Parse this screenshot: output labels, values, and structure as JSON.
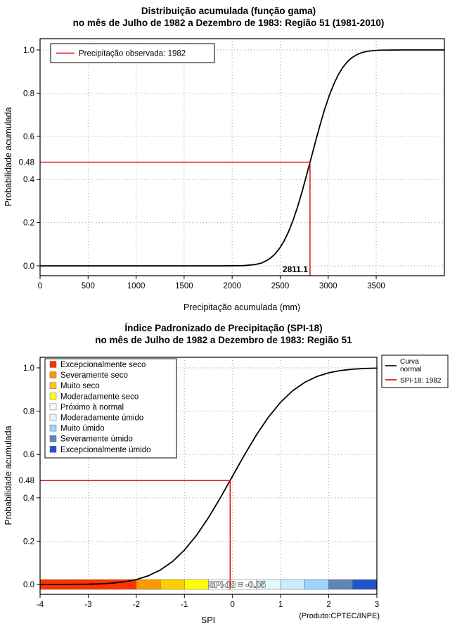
{
  "page": {
    "background": "#ffffff"
  },
  "chart_data": [
    {
      "type": "line",
      "title": "Distribuição acumulada (função gama)",
      "subtitle": "no mês de Julho de 1982 a Dezembro de 1983: Região 51 (1981-2010)",
      "xlabel": "Precipitação acumulada (mm)",
      "ylabel": "Probabilidade acumulada",
      "xlim": [
        0,
        4210
      ],
      "ylim": [
        0,
        1
      ],
      "grid": true,
      "xticks": {
        "values": [
          0,
          500,
          1000,
          1500,
          2000,
          2500,
          3000,
          3500
        ],
        "labels": [
          "0",
          "500",
          "1000",
          "1500",
          "2000",
          "2500",
          "3000",
          "3500"
        ]
      },
      "yticks": {
        "values": [
          0,
          0.2,
          0.4,
          0.6,
          0.8,
          1.0
        ],
        "labels": [
          "0.0",
          "0.2",
          "0.4",
          "0.6",
          "0.8",
          "1.0"
        ]
      },
      "legend": {
        "position": "top-left",
        "entries": [
          {
            "label": "Precipitação observada: 1982",
            "color": "#dd0000"
          }
        ]
      },
      "series": [
        {
          "name": "Distribuição gama acumulada",
          "color": "#000000",
          "points": [
            [
              0,
              0
            ],
            [
              600,
              0
            ],
            [
              1200,
              0
            ],
            [
              1600,
              0
            ],
            [
              1900,
              0
            ],
            [
              2000,
              0.0005
            ],
            [
              2120,
              0.001
            ],
            [
              2235,
              0.006
            ],
            [
              2300,
              0.012
            ],
            [
              2353,
              0.023
            ],
            [
              2400,
              0.036
            ],
            [
              2447,
              0.055
            ],
            [
              2494,
              0.081
            ],
            [
              2541,
              0.115
            ],
            [
              2588,
              0.159
            ],
            [
              2635,
              0.212
            ],
            [
              2682,
              0.274
            ],
            [
              2729,
              0.345
            ],
            [
              2776,
              0.421
            ],
            [
              2811,
              0.48
            ],
            [
              2823,
              0.5
            ],
            [
              2870,
              0.579
            ],
            [
              2917,
              0.655
            ],
            [
              2964,
              0.726
            ],
            [
              3011,
              0.788
            ],
            [
              3058,
              0.841
            ],
            [
              3105,
              0.885
            ],
            [
              3152,
              0.919
            ],
            [
              3199,
              0.945
            ],
            [
              3246,
              0.964
            ],
            [
              3293,
              0.977
            ],
            [
              3340,
              0.986
            ],
            [
              3387,
              0.992
            ],
            [
              3434,
              0.995
            ],
            [
              3481,
              0.997
            ],
            [
              3528,
              0.9987
            ],
            [
              3646,
              0.9995
            ],
            [
              3800,
              0.9999
            ],
            [
              4000,
              1
            ],
            [
              4210,
              1
            ]
          ]
        }
      ],
      "marker": {
        "x": 2811.1,
        "y": 0.48,
        "x_label": "2811.1",
        "y_label": "0.48",
        "color": "#dd0000"
      }
    },
    {
      "type": "line",
      "title": "Índice Padronizado de Precipitação (SPI-18)",
      "subtitle": "no mês de Julho de 1982 a Dezembro de 1983: Região 51",
      "xlabel": "SPI",
      "ylabel": "Probabilidade acumulada",
      "note": "(Produto:CPTEC/INPE)",
      "xlim": [
        -4,
        3
      ],
      "ylim": [
        0,
        1
      ],
      "grid": true,
      "xticks": {
        "values": [
          -4,
          -3,
          -2,
          -1,
          0,
          1,
          2,
          3
        ],
        "labels": [
          "-4",
          "-3",
          "-2",
          "-1",
          "0",
          "1",
          "2",
          "3"
        ]
      },
      "yticks": {
        "values": [
          0,
          0.2,
          0.4,
          0.6,
          0.8,
          1.0
        ],
        "labels": [
          "0.0",
          "0.2",
          "0.4",
          "0.6",
          "0.8",
          "1.0"
        ]
      },
      "categories": [
        {
          "label": "Excepcionalmente seco",
          "color": "#ff3300"
        },
        {
          "label": "Severamente seco",
          "color": "#ff9900"
        },
        {
          "label": "Muito seco",
          "color": "#ffcc00"
        },
        {
          "label": "Moderadamente seco",
          "color": "#ffff00"
        },
        {
          "label": "Próximo à normal",
          "color": "#ffffff"
        },
        {
          "label": "Moderadamente úmido",
          "color": "#e4f7ff"
        },
        {
          "label": "Muito úmido",
          "color": "#9fd4ff"
        },
        {
          "label": "Severamente úmido",
          "color": "#5e87b8"
        },
        {
          "label": "Excepcionalmente úmido",
          "color": "#2053cc"
        }
      ],
      "legend_right": {
        "curve_label_line1": "Curva",
        "curve_label_line2": "normal",
        "curve_color": "#000000",
        "spi_label": "SPI-18: 1982",
        "spi_color": "#dd0000"
      },
      "spi_bar": {
        "segments": [
          {
            "from": -4,
            "to": -2,
            "color": "#ff3300"
          },
          {
            "from": -2,
            "to": -1.5,
            "color": "#ff9900"
          },
          {
            "from": -1.5,
            "to": -1,
            "color": "#ffcc00"
          },
          {
            "from": -1,
            "to": -0.5,
            "color": "#ffff00"
          },
          {
            "from": -0.5,
            "to": 0.5,
            "color": "#ffffff"
          },
          {
            "from": 0.5,
            "to": 1,
            "color": "#e4f7ff"
          },
          {
            "from": 1,
            "to": 1.5,
            "color": "#c9ecff"
          },
          {
            "from": 1.5,
            "to": 2,
            "color": "#9fd4ff"
          },
          {
            "from": 2,
            "to": 2.5,
            "color": "#5e87b8"
          },
          {
            "from": 2.5,
            "to": 3,
            "color": "#2053cc"
          }
        ]
      },
      "series": [
        {
          "name": "Curva normal",
          "color": "#000000",
          "points": [
            [
              -4,
              0.0
            ],
            [
              -3.5,
              0.0002
            ],
            [
              -3,
              0.0013
            ],
            [
              -2.75,
              0.003
            ],
            [
              -2.5,
              0.0062
            ],
            [
              -2.25,
              0.0122
            ],
            [
              -2,
              0.0228
            ],
            [
              -1.75,
              0.0401
            ],
            [
              -1.5,
              0.0668
            ],
            [
              -1.25,
              0.1056
            ],
            [
              -1,
              0.1587
            ],
            [
              -0.75,
              0.2266
            ],
            [
              -0.5,
              0.3085
            ],
            [
              -0.25,
              0.4013
            ],
            [
              -0.05,
              0.4801
            ],
            [
              0,
              0.5
            ],
            [
              0.25,
              0.5987
            ],
            [
              0.5,
              0.6915
            ],
            [
              0.75,
              0.7734
            ],
            [
              1,
              0.8413
            ],
            [
              1.25,
              0.8944
            ],
            [
              1.5,
              0.9332
            ],
            [
              1.75,
              0.9599
            ],
            [
              2,
              0.9772
            ],
            [
              2.25,
              0.9878
            ],
            [
              2.5,
              0.9938
            ],
            [
              2.75,
              0.997
            ],
            [
              3,
              0.9987
            ]
          ]
        }
      ],
      "marker": {
        "x": -0.05,
        "y": 0.48,
        "y_label": "0.48",
        "bar_label": "SPI-18 = -0.05",
        "color": "#dd0000"
      }
    }
  ]
}
